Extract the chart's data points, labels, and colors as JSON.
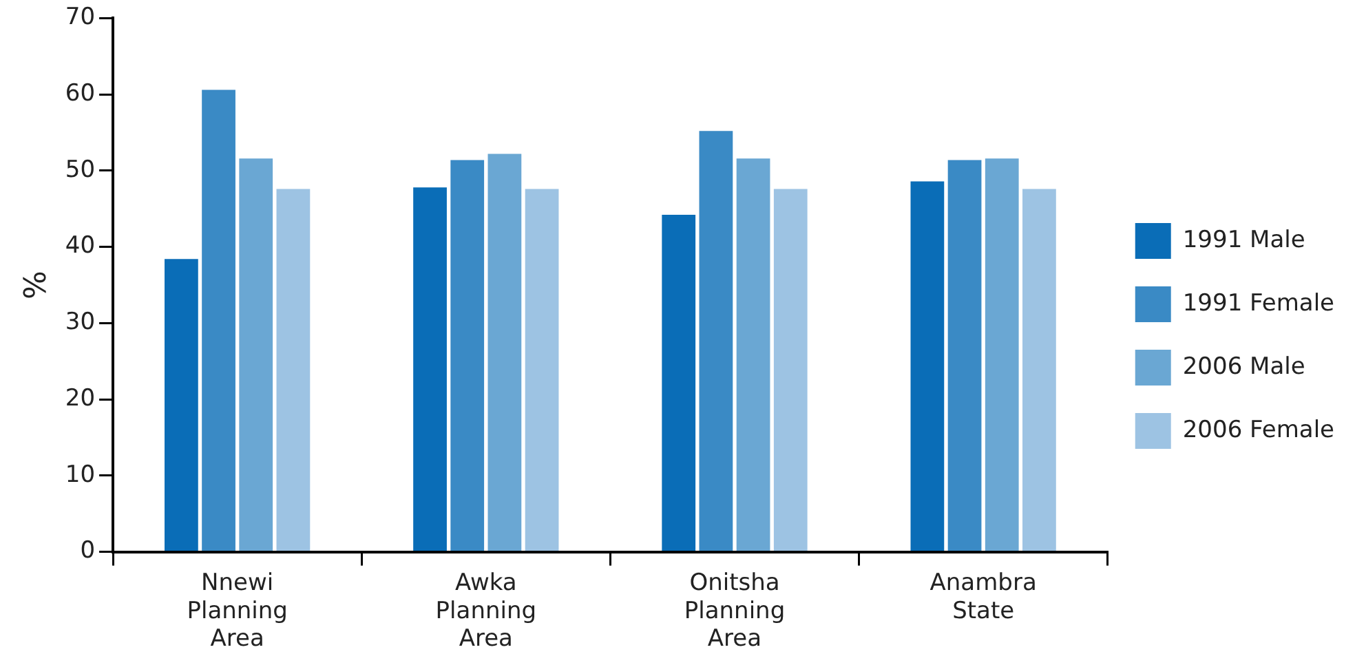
{
  "chart_data": {
    "type": "bar",
    "ylabel": "%",
    "categories": [
      "Nnewi Planning Area",
      "Awka Planning Area",
      "Onitsha Planning Area",
      "Anambra State"
    ],
    "series": [
      {
        "name": "1991 Male",
        "color": "#0a6db7",
        "values": [
          38.4,
          47.8,
          44.2,
          48.6
        ]
      },
      {
        "name": "1991 Female",
        "color": "#3a8ac5",
        "values": [
          60.6,
          51.4,
          55.2,
          51.4
        ]
      },
      {
        "name": "2006 Male",
        "color": "#6aa7d3",
        "values": [
          51.6,
          52.2,
          51.6,
          51.6
        ]
      },
      {
        "name": "2006 Female",
        "color": "#9dc3e3",
        "values": [
          47.6,
          47.6,
          47.6,
          47.6
        ]
      }
    ],
    "ylim": [
      0,
      70
    ],
    "yticks": [
      0,
      10,
      20,
      30,
      40,
      50,
      60,
      70
    ],
    "grid": false,
    "legend": "right"
  }
}
